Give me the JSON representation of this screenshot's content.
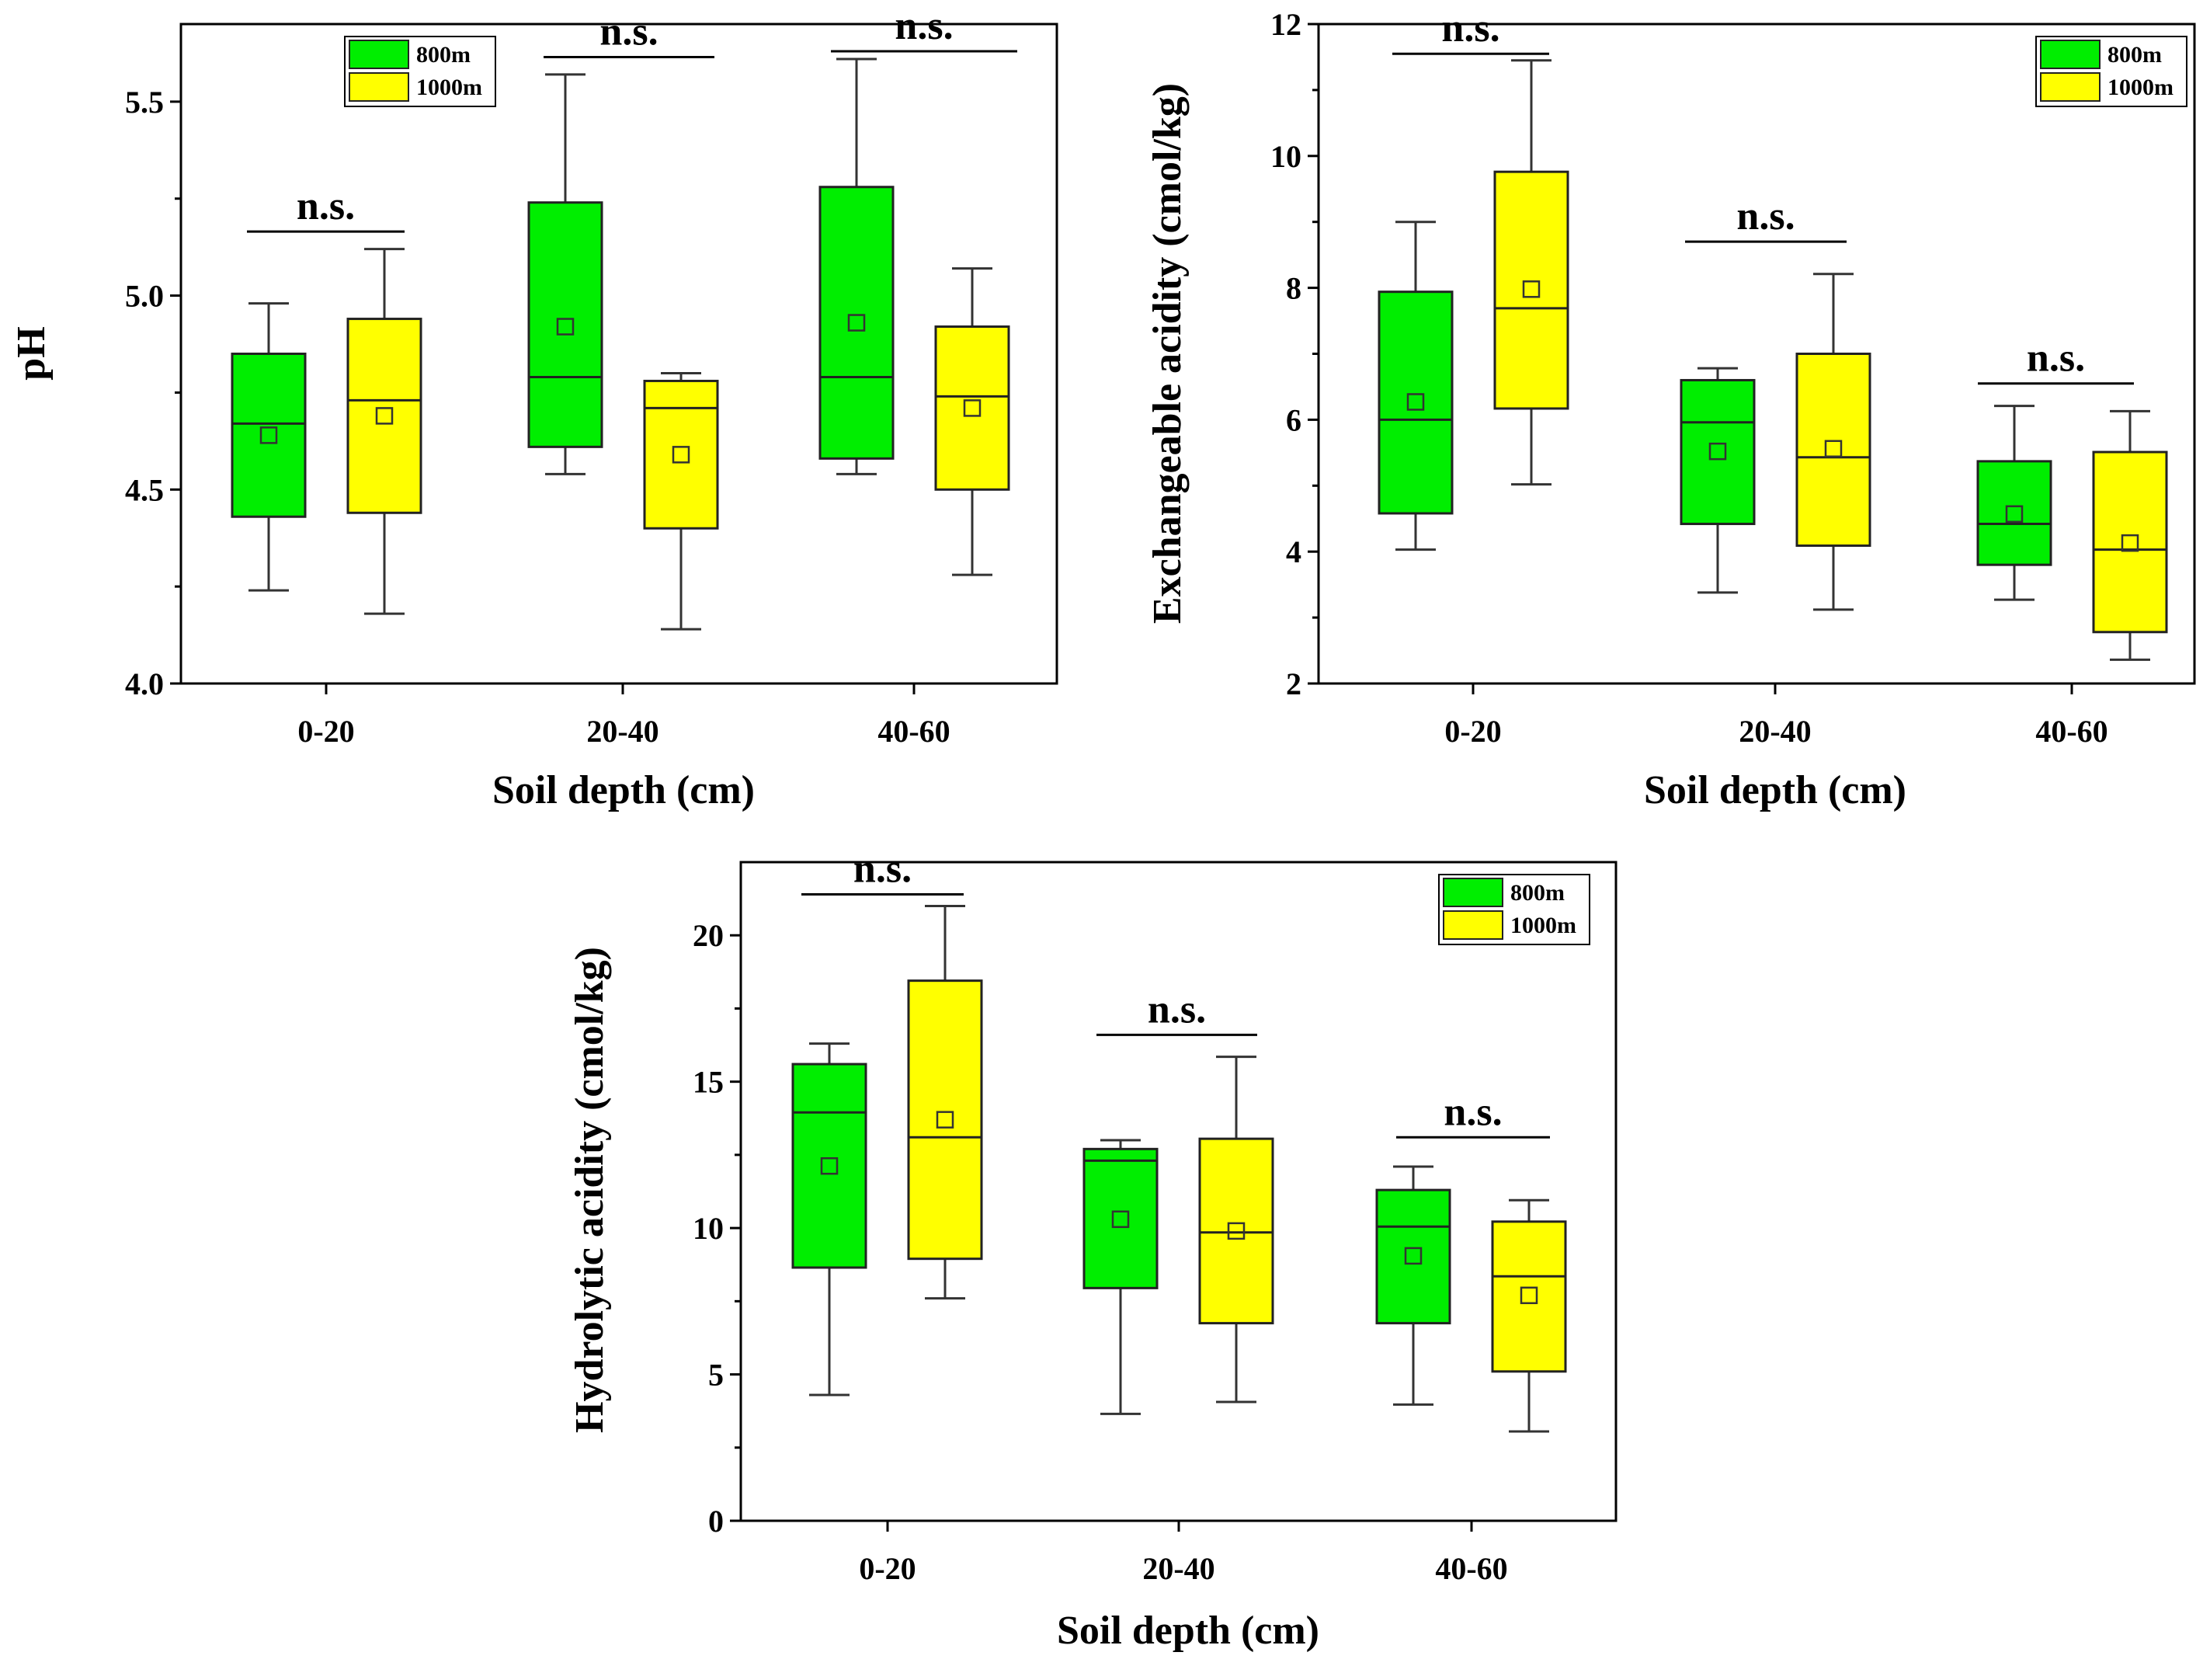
{
  "colors": {
    "g800": "#00ee00",
    "g1000": "#ffff00",
    "axis": "#000000"
  },
  "chart_data": [
    {
      "type": "box",
      "ylabel": "pH",
      "xlabel": "Soil depth (cm)",
      "categories": [
        "0-20",
        "20-40",
        "40-60"
      ],
      "ylim": [
        4.0,
        5.7
      ],
      "yticks": [
        4.0,
        4.5,
        5.0,
        5.5
      ],
      "ytick_labels": [
        "4.0",
        "4.5",
        "5.0",
        "5.5"
      ],
      "legend": [
        "800m",
        "1000m"
      ],
      "series": [
        {
          "name": "800m",
          "boxes": [
            {
              "min": 4.24,
              "q1": 4.43,
              "median": 4.67,
              "q3": 4.85,
              "max": 4.98,
              "mean": 4.64
            },
            {
              "min": 4.54,
              "q1": 4.61,
              "median": 4.79,
              "q3": 5.24,
              "max": 5.57,
              "mean": 4.92
            },
            {
              "min": 4.54,
              "q1": 4.58,
              "median": 4.79,
              "q3": 5.28,
              "max": 5.61,
              "mean": 4.93
            }
          ]
        },
        {
          "name": "1000m",
          "boxes": [
            {
              "min": 4.18,
              "q1": 4.44,
              "median": 4.73,
              "q3": 4.94,
              "max": 5.12,
              "mean": 4.69
            },
            {
              "min": 4.14,
              "q1": 4.4,
              "median": 4.71,
              "q3": 4.78,
              "max": 4.8,
              "mean": 4.59
            },
            {
              "min": 4.28,
              "q1": 4.5,
              "median": 4.74,
              "q3": 4.92,
              "max": 5.07,
              "mean": 4.71
            }
          ]
        }
      ],
      "significance": [
        {
          "label": "n.s.",
          "y": 5.165
        },
        {
          "label": "n.s.",
          "y": 5.615
        },
        {
          "label": "n.s.",
          "y": 5.63
        }
      ]
    },
    {
      "type": "box",
      "ylabel": "Exchangeable acidity (cmol/kg)",
      "xlabel": "Soil depth (cm)",
      "categories": [
        "0-20",
        "20-40",
        "40-60"
      ],
      "ylim": [
        2,
        12
      ],
      "yticks": [
        2,
        4,
        6,
        8,
        10,
        12
      ],
      "ytick_labels": [
        "2",
        "4",
        "6",
        "8",
        "10",
        "12"
      ],
      "legend": [
        "800m",
        "1000m"
      ],
      "series": [
        {
          "name": "800m",
          "boxes": [
            {
              "min": 4.03,
              "q1": 4.58,
              "median": 6.0,
              "q3": 7.94,
              "max": 9.0,
              "mean": 6.27
            },
            {
              "min": 3.38,
              "q1": 4.42,
              "median": 5.96,
              "q3": 6.6,
              "max": 6.78,
              "mean": 5.52
            },
            {
              "min": 3.27,
              "q1": 3.8,
              "median": 4.42,
              "q3": 5.37,
              "max": 6.21,
              "mean": 4.57
            }
          ]
        },
        {
          "name": "1000m",
          "boxes": [
            {
              "min": 5.02,
              "q1": 6.17,
              "median": 7.69,
              "q3": 9.76,
              "max": 11.45,
              "mean": 7.98
            },
            {
              "min": 3.12,
              "q1": 4.09,
              "median": 5.43,
              "q3": 7.0,
              "max": 8.21,
              "mean": 5.56
            },
            {
              "min": 2.36,
              "q1": 2.78,
              "median": 4.03,
              "q3": 5.51,
              "max": 6.13,
              "mean": 4.13
            }
          ]
        }
      ],
      "significance": [
        {
          "label": "n.s.",
          "y": 11.55
        },
        {
          "label": "n.s.",
          "y": 8.7
        },
        {
          "label": "n.s.",
          "y": 6.55
        }
      ]
    },
    {
      "type": "box",
      "ylabel": "Hydrolytic acidity (cmol/kg)",
      "xlabel": "Soil depth (cm)",
      "categories": [
        "0-20",
        "20-40",
        "40-60"
      ],
      "ylim": [
        0,
        22.5
      ],
      "yticks": [
        0,
        5,
        10,
        15,
        20
      ],
      "ytick_labels": [
        "0",
        "5",
        "10",
        "15",
        "20"
      ],
      "legend": [
        "800m",
        "1000m"
      ],
      "series": [
        {
          "name": "800m",
          "boxes": [
            {
              "min": 4.3,
              "q1": 8.65,
              "median": 13.95,
              "q3": 15.6,
              "max": 16.3,
              "mean": 12.12
            },
            {
              "min": 3.65,
              "q1": 7.95,
              "median": 12.3,
              "q3": 12.7,
              "max": 13.0,
              "mean": 10.3
            },
            {
              "min": 3.97,
              "q1": 6.75,
              "median": 10.05,
              "q3": 11.3,
              "max": 12.1,
              "mean": 9.05
            }
          ]
        },
        {
          "name": "1000m",
          "boxes": [
            {
              "min": 7.6,
              "q1": 8.95,
              "median": 13.1,
              "q3": 18.45,
              "max": 21.0,
              "mean": 13.7
            },
            {
              "min": 4.06,
              "q1": 6.75,
              "median": 9.85,
              "q3": 13.05,
              "max": 15.85,
              "mean": 9.9
            },
            {
              "min": 3.05,
              "q1": 5.1,
              "median": 8.35,
              "q3": 10.22,
              "max": 10.95,
              "mean": 7.7
            }
          ]
        }
      ],
      "significance": [
        {
          "label": "n.s.",
          "y": 21.4
        },
        {
          "label": "n.s.",
          "y": 16.6
        },
        {
          "label": "n.s.",
          "y": 13.1
        }
      ]
    }
  ]
}
